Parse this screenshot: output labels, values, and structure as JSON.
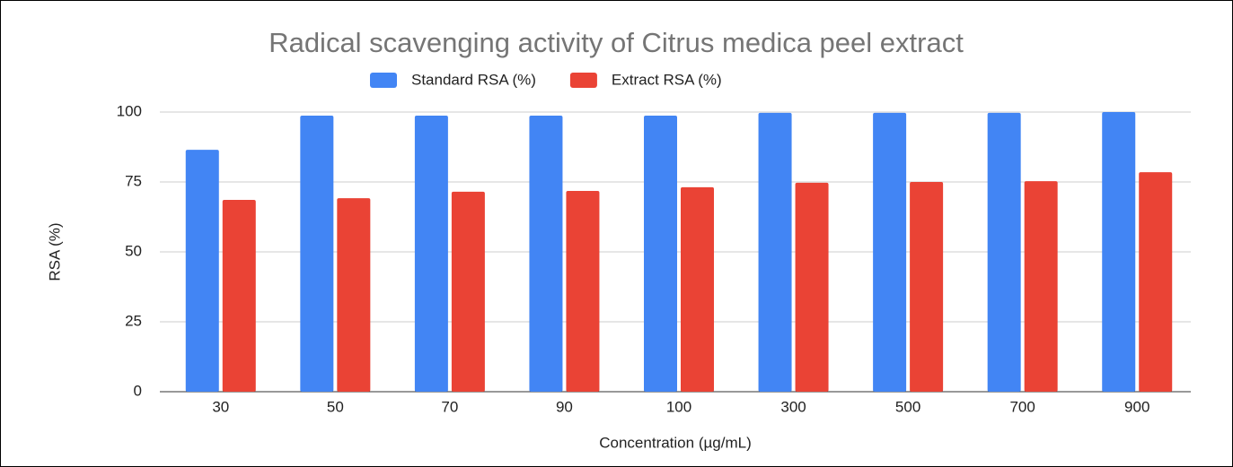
{
  "chart_data": {
    "type": "bar",
    "title": "Radical scavenging activity of Citrus medica peel extract",
    "x_label": "Concentration (µg/mL)",
    "y_label": "RSA (%)",
    "categories": [
      "30",
      "50",
      "70",
      "90",
      "100",
      "300",
      "500",
      "700",
      "900"
    ],
    "series": [
      {
        "name": "Standard RSA (%)",
        "color": "#4285f4",
        "values": [
          86.5,
          98.7,
          98.7,
          98.7,
          98.7,
          99.7,
          99.7,
          99.7,
          100
        ]
      },
      {
        "name": "Extract RSA (%)",
        "color": "#ea4335",
        "values": [
          68.6,
          69.2,
          71.5,
          71.8,
          73.1,
          74.7,
          75,
          75.3,
          78.5
        ]
      }
    ],
    "ylim": [
      0,
      100
    ],
    "yticks": [
      0,
      25,
      50,
      75,
      100
    ],
    "grid": true,
    "legend": "top"
  }
}
